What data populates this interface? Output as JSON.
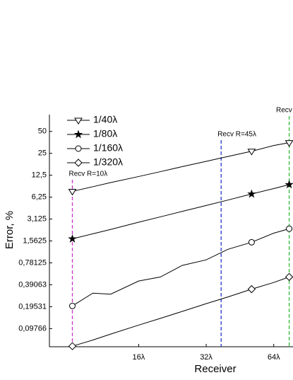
{
  "chart_data": {
    "type": "line",
    "xlabel": "Receiver",
    "ylabel": "Error, %",
    "xscale": "log",
    "yscale": "log",
    "xlim": [
      6.4,
      78
    ],
    "ylim": [
      0.055,
      85
    ],
    "xticks": [
      {
        "value": 16,
        "label": "16λ"
      },
      {
        "value": 32,
        "label": "32λ"
      },
      {
        "value": 64,
        "label": "64λ"
      }
    ],
    "yticks": [
      50,
      25,
      {
        "value": 12.5,
        "label": "12,5"
      },
      {
        "value": 6.25,
        "label": "6,25"
      },
      {
        "value": 3.125,
        "label": "3,125"
      },
      {
        "value": 1.5625,
        "label": "1,5625"
      },
      {
        "value": 0.78125,
        "label": "0,78125"
      },
      {
        "value": 0.39063,
        "label": "0,39063"
      },
      {
        "value": 0.19531,
        "label": "0,19531"
      },
      {
        "value": 0.09766,
        "label": "0,09766"
      }
    ],
    "legend": "upper left",
    "x": [
      8.1,
      10,
      12,
      16,
      20,
      25,
      32,
      40,
      51,
      64,
      75
    ],
    "series": [
      {
        "name": "1/40λ",
        "marker": "triangle-down",
        "color": "#000000",
        "values": [
          7.5,
          8.7,
          9.9,
          12,
          14,
          16.4,
          19.4,
          22.6,
          26.7,
          32,
          35
        ]
      },
      {
        "name": "1/80λ",
        "marker": "star",
        "color": "#000000",
        "values": [
          1.67,
          1.96,
          2.25,
          2.83,
          3.35,
          3.98,
          4.8,
          5.7,
          6.9,
          8.2,
          9.3
        ]
      },
      {
        "name": "1/160λ",
        "marker": "circle",
        "color": "#000000",
        "values": [
          0.2,
          0.3,
          0.29,
          0.44,
          0.5,
          0.72,
          0.86,
          1.2,
          1.5,
          2.0,
          2.3
        ]
      },
      {
        "name": "1/320λ",
        "marker": "diamond",
        "color": "#000000",
        "values": [
          0.056,
          0.068,
          0.082,
          0.109,
          0.135,
          0.168,
          0.215,
          0.266,
          0.34,
          0.42,
          0.5
        ]
      }
    ],
    "vlines": [
      {
        "x": 8.1,
        "label": "Recv R=10λ",
        "color": "#cc33cc"
      },
      {
        "x": 37.3,
        "label": "Recv R=45λ",
        "color": "#2233cc"
      },
      {
        "x": 75,
        "label": "Recv",
        "color": "#33bb33"
      }
    ]
  }
}
